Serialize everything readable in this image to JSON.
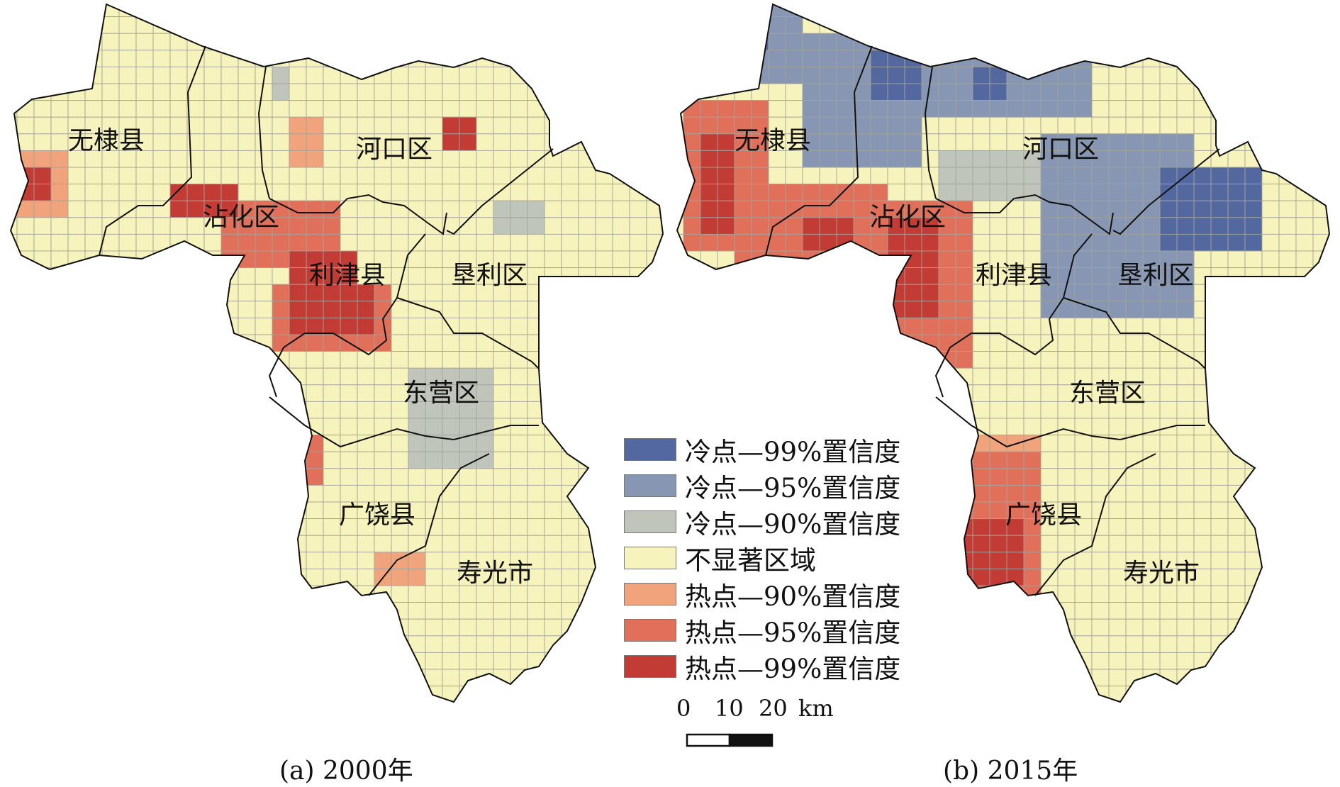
{
  "legend": {
    "items": [
      {
        "label": "冷点—99%置信度",
        "color": "#5468a0"
      },
      {
        "label": "冷点—95%置信度",
        "color": "#8796b3"
      },
      {
        "label": "冷点—90%置信度",
        "color": "#c0c5bb"
      },
      {
        "label": "不显著区域",
        "color": "#f7f3bd"
      },
      {
        "label": "热点—90%置信度",
        "color": "#f1a47c"
      },
      {
        "label": "热点—95%置信度",
        "color": "#e1705b"
      },
      {
        "label": "热点—99%置信度",
        "color": "#c23c35"
      }
    ]
  },
  "scale_bar": {
    "ticks": [
      "0",
      "10",
      "20"
    ],
    "unit": "km"
  },
  "panels": [
    {
      "caption": "(a) 2000年",
      "districts": [
        "无棣县",
        "沾化区",
        "河口区",
        "利津县",
        "垦利区",
        "东营区",
        "广饶县",
        "寿光市"
      ]
    },
    {
      "caption": "(b) 2015年",
      "districts": [
        "无棣县",
        "沾化区",
        "河口区",
        "利津县",
        "垦利区",
        "东营区",
        "广饶县",
        "寿光市"
      ]
    }
  ],
  "colors": {
    "grid": "#a3a39a",
    "boundary": "#111111",
    "background": "#ffffff"
  }
}
